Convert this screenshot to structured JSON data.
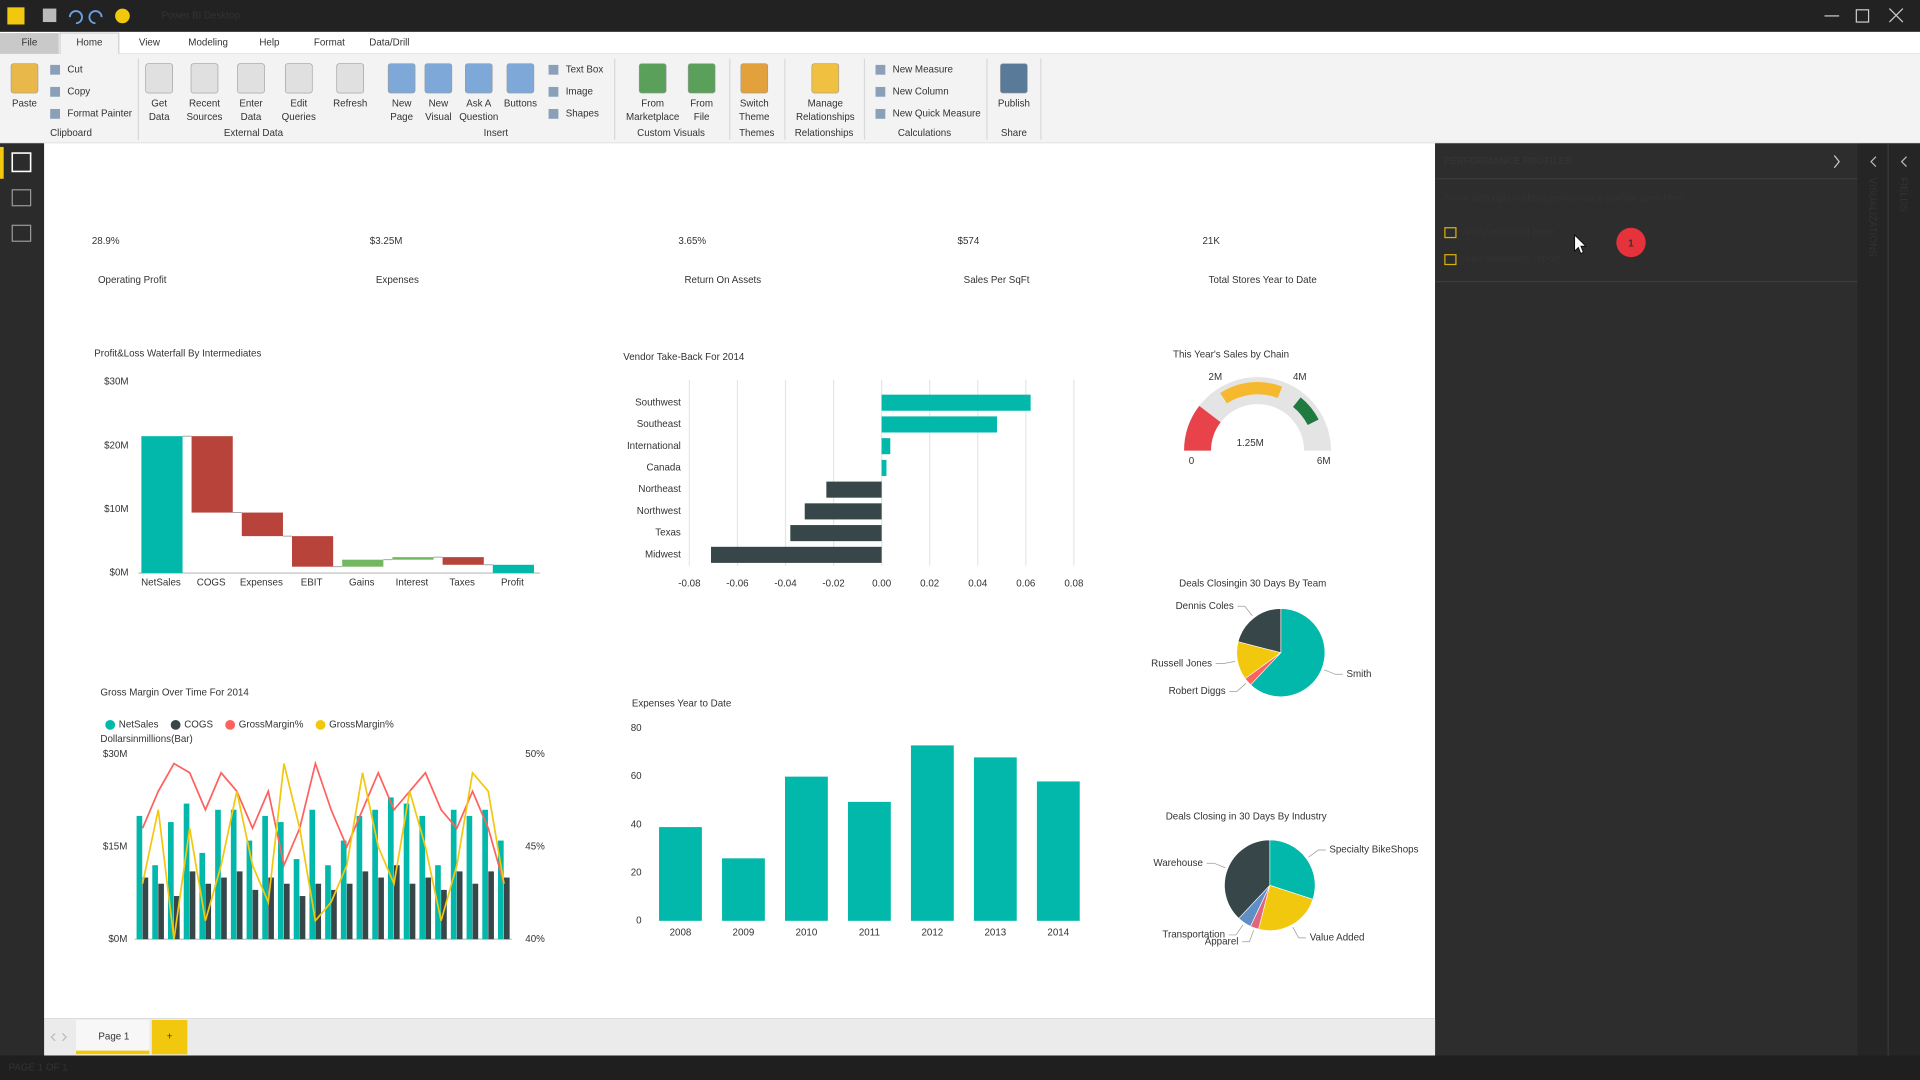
{
  "app": {
    "title": "Power BI Desktop"
  },
  "ribbon": {
    "tabs": [
      "File",
      "Home",
      "View",
      "Modeling",
      "Help",
      "Format",
      "Data/Drill"
    ],
    "groups": [
      {
        "name": "Clipboard",
        "large": [
          [
            "Paste"
          ]
        ],
        "small": [
          "Cut",
          "Copy",
          "Format Painter"
        ]
      },
      {
        "name": "External Data",
        "large": [
          [
            "Get",
            "Data"
          ],
          [
            "Recent",
            "Sources"
          ],
          [
            "Enter",
            "Data"
          ],
          [
            "Edit",
            "Queries"
          ],
          [
            "Refresh"
          ]
        ]
      },
      {
        "name": "Insert",
        "large": [
          [
            "New",
            "Page"
          ],
          [
            "New",
            "Visual"
          ],
          [
            "Ask A",
            "Question"
          ],
          [
            "Buttons"
          ]
        ],
        "small": [
          "Text Box",
          "Image",
          "Shapes"
        ]
      },
      {
        "name": "Custom Visuals",
        "large": [
          [
            "From",
            "Marketplace"
          ],
          [
            "From",
            "File"
          ]
        ]
      },
      {
        "name": "Themes",
        "large": [
          [
            "Switch",
            "Theme"
          ]
        ]
      },
      {
        "name": "Relationships",
        "large": [
          [
            "Manage",
            "Relationships"
          ]
        ]
      },
      {
        "name": "Calculations",
        "small": [
          "New Measure",
          "New Column",
          "New Quick Measure"
        ]
      },
      {
        "name": "Share",
        "large": [
          [
            "Publish"
          ]
        ]
      }
    ]
  },
  "cards": [
    {
      "value": "28.9%",
      "label": "Operating Profit"
    },
    {
      "value": "$3.25M",
      "label": "Expenses"
    },
    {
      "value": "3.65%",
      "label": "Return On Assets"
    },
    {
      "value": "$574",
      "label": "Sales Per SqFt"
    },
    {
      "value": "21K",
      "label": "Total Stores Year to Date"
    }
  ],
  "chart_data": [
    {
      "type": "waterfall",
      "title": "Profit&Loss Waterfall By Intermediates",
      "categories": [
        "NetSales",
        "COGS",
        "Expenses",
        "EBIT",
        "Gains",
        "Interest",
        "Taxes",
        "Profit"
      ],
      "values": [
        21.5,
        -12,
        -3.7,
        -4.8,
        1.1,
        0.4,
        -1.2,
        1.3
      ],
      "colors": [
        "#01b8aa",
        "#b8433a",
        "#b8433a",
        "#b8433a",
        "#73b761",
        "#73b761",
        "#b8433a",
        "#01b8aa"
      ],
      "ylim": [
        0,
        30
      ],
      "yticks": [
        {
          "value": 0,
          "label": "$0M"
        },
        {
          "value": 10,
          "label": "$10M"
        },
        {
          "value": 20,
          "label": "$20M"
        },
        {
          "value": 30,
          "label": "$30M"
        }
      ],
      "grid": false
    },
    {
      "type": "hbar",
      "title": "Vendor Take-Back For 2014",
      "categories": [
        "Southwest",
        "Southeast",
        "International",
        "Canada",
        "Northeast",
        "Northwest",
        "Texas",
        "Midwest"
      ],
      "values": [
        0.062,
        0.048,
        0.0036,
        0.002,
        -0.023,
        -0.032,
        -0.038,
        -0.071
      ],
      "color": "#01b8aa",
      "negative_color": "#374649",
      "xlim": [
        -0.08,
        0.08
      ],
      "xticks": [
        -0.08,
        -0.06,
        -0.04,
        -0.02,
        {
          "value": 0,
          "label": "0.00"
        },
        0.02,
        0.04,
        0.06,
        0.08
      ],
      "grid": true
    },
    {
      "type": "gauge",
      "title": "This Year's Sales by Chain",
      "value": 1.25,
      "value_label": "1.25M",
      "color": "#e8434a",
      "track_color": "#e4e4e4",
      "ylim": [
        0,
        6
      ],
      "yticks": [
        0,
        {
          "value": 2,
          "label": "2M"
        },
        {
          "value": 4,
          "label": "4M"
        },
        {
          "value": 6,
          "label": "6M"
        }
      ],
      "bands": [
        {
          "from": 1.9,
          "to": 3.7,
          "color": "#f5b82e"
        },
        {
          "from": 4.3,
          "to": 5.1,
          "color": "#1e7a3e"
        }
      ]
    },
    {
      "type": "pie",
      "title": "Deals Closingin 30 Days By Team",
      "categories": [
        "Smith",
        "Robert Diggs",
        "Russell Jones",
        "Dennis Coles"
      ],
      "values": [
        62,
        3,
        14,
        21
      ],
      "colors": [
        "#01b8aa",
        "#fd625e",
        "#f2c80f",
        "#374649"
      ]
    },
    {
      "type": "pie",
      "title": "Deals Closing in 30 Days By Industry",
      "categories": [
        "Specialty BikeShops",
        "Value Added",
        "Apparel",
        "Transportation",
        "Warehouse"
      ],
      "values": [
        30,
        24,
        3,
        5,
        38
      ],
      "colors": [
        "#01b8aa",
        "#f2c80f",
        "#e06680",
        "#5f8fc6",
        "#374649"
      ]
    },
    {
      "type": "combo",
      "title": "Gross Margin Over Time For 2014",
      "y_label": "Dollarsinmillions(Bar)",
      "categories": [
        null,
        null,
        null,
        null,
        null,
        null,
        null,
        null,
        null,
        null,
        null,
        null,
        null,
        null,
        null,
        null,
        null,
        null,
        null,
        null,
        null,
        null,
        null,
        null
      ],
      "series": [
        {
          "name": "NetSales",
          "type": "bar",
          "color": "#01b8aa",
          "values": [
            20,
            12,
            19,
            22,
            14,
            21,
            21,
            16,
            20,
            19,
            13,
            21,
            12,
            16,
            20,
            21,
            23,
            22,
            20,
            12,
            21,
            20,
            21,
            16
          ]
        },
        {
          "name": "COGS",
          "type": "bar",
          "color": "#374649",
          "values": [
            10,
            9,
            7,
            11,
            9,
            10,
            11,
            8,
            10,
            9,
            7,
            9,
            8,
            9,
            11,
            10,
            12,
            9,
            10,
            8,
            11,
            9,
            11,
            10
          ]
        },
        {
          "name": "GrossMargin%",
          "type": "line",
          "axis": "y2",
          "color": "#fd625e",
          "values": [
            46,
            48,
            49.5,
            49,
            47,
            49,
            48,
            46,
            48,
            44,
            46,
            49.5,
            47,
            45,
            47,
            49,
            47,
            48,
            49,
            47,
            46,
            48,
            46,
            43
          ]
        },
        {
          "name": "GrossMargin%",
          "type": "line",
          "axis": "y2",
          "color": "#f2c80f",
          "values": [
            43,
            47,
            40,
            46,
            41,
            44,
            48,
            44,
            42,
            49.5,
            46,
            41,
            42,
            44,
            49,
            45,
            43,
            48,
            45,
            41,
            44,
            49,
            48,
            43
          ]
        }
      ],
      "ylim": [
        0,
        30
      ],
      "yticks": [
        {
          "value": 0,
          "label": "$0M"
        },
        {
          "value": 15,
          "label": "$15M"
        },
        {
          "value": 30,
          "label": "$30M"
        }
      ],
      "y2lim": [
        40,
        50
      ],
      "y2ticks": [
        {
          "value": 40,
          "label": "40%"
        },
        {
          "value": 45,
          "label": "45%"
        },
        {
          "value": 50,
          "label": "50%"
        }
      ],
      "grid": false
    },
    {
      "type": "bar",
      "title": "Expenses Year to Date",
      "categories": [
        "2008",
        "2009",
        "2010",
        "2011",
        "2012",
        "2013",
        "2014"
      ],
      "values": [
        39,
        26,
        60,
        49.5,
        73,
        68,
        58
      ],
      "color": "#01b8aa",
      "ylim": [
        0,
        80
      ],
      "yticks": [
        0,
        20,
        40,
        60,
        80
      ],
      "grid": false
    }
  ],
  "panel": {
    "title": "PERFORMANCE PROFILER",
    "description": "Some description about performance profiler goes here.",
    "links": [
      "Analyse current page",
      "Start monitoring report"
    ],
    "badge": "1",
    "side_tabs": [
      "VISUALIZATIONS",
      "FIELDS"
    ]
  },
  "pages": {
    "tabs": [
      "Page 1"
    ],
    "add": "+",
    "status": "PAGE 1 OF 1"
  }
}
